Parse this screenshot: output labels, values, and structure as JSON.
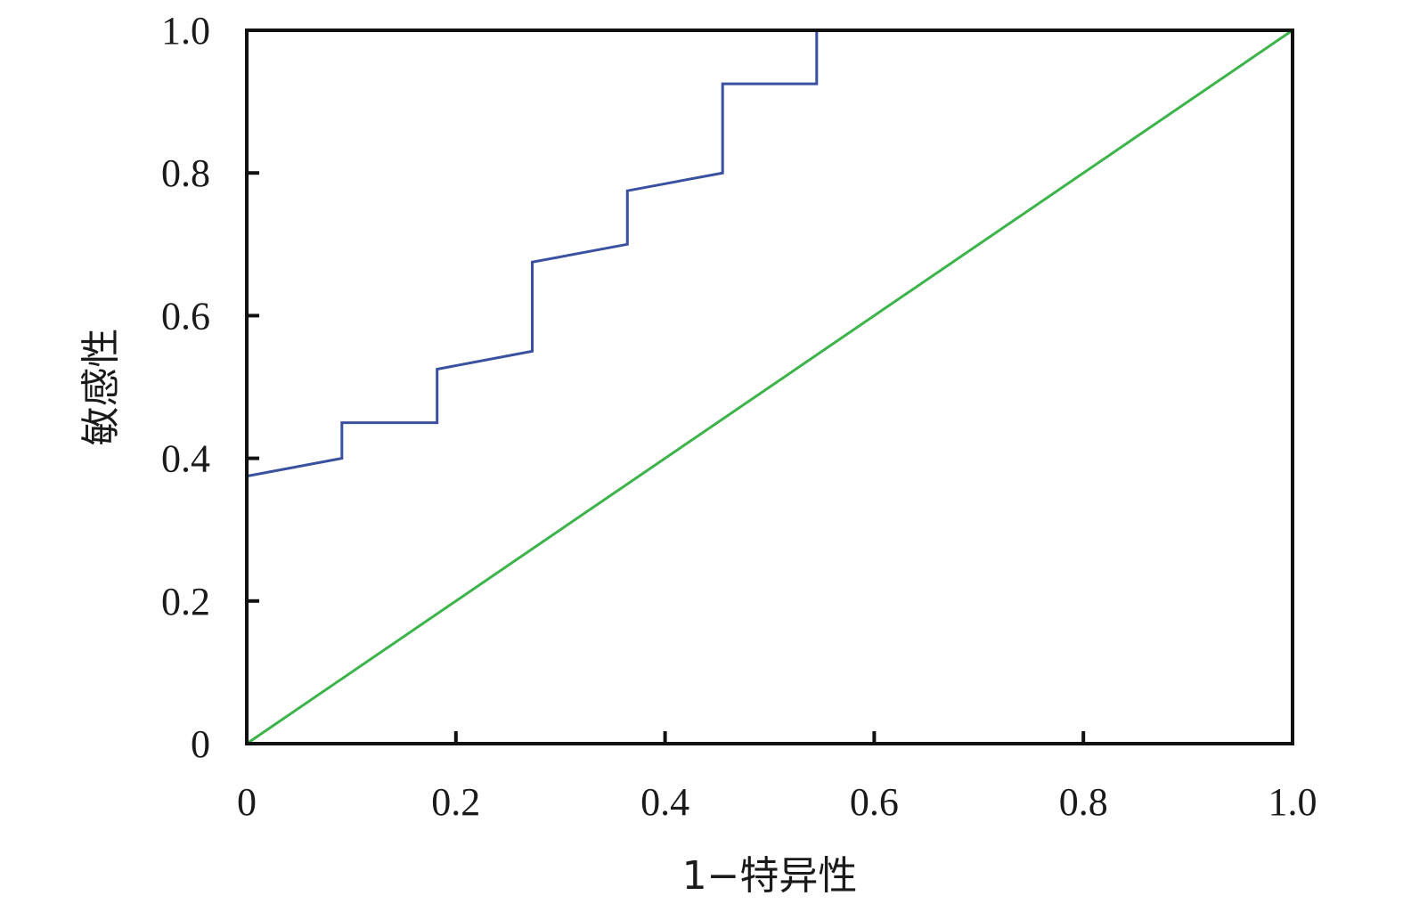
{
  "chart_data": {
    "type": "line",
    "title": "",
    "xlabel": "1−特异性",
    "ylabel": "敏感性",
    "xlim": [
      0,
      1.0
    ],
    "ylim": [
      0,
      1.0
    ],
    "x_ticks": [
      {
        "value": 0,
        "label": "0"
      },
      {
        "value": 0.2,
        "label": "0.2"
      },
      {
        "value": 0.4,
        "label": "0.4"
      },
      {
        "value": 0.6,
        "label": "0.6"
      },
      {
        "value": 0.8,
        "label": "0.8"
      },
      {
        "value": 1.0,
        "label": "1.0"
      }
    ],
    "y_ticks": [
      {
        "value": 0,
        "label": "0"
      },
      {
        "value": 0.2,
        "label": "0.2"
      },
      {
        "value": 0.4,
        "label": "0.4"
      },
      {
        "value": 0.6,
        "label": "0.6"
      },
      {
        "value": 0.8,
        "label": "0.8"
      },
      {
        "value": 1.0,
        "label": "1.0"
      }
    ],
    "grid": false,
    "legend": "none",
    "series": [
      {
        "color": "#3a50a0",
        "points": [
          [
            0,
            0
          ],
          [
            0,
            0.375
          ],
          [
            0.091,
            0.4
          ],
          [
            0.091,
            0.45
          ],
          [
            0.182,
            0.45
          ],
          [
            0.182,
            0.525
          ],
          [
            0.273,
            0.55
          ],
          [
            0.273,
            0.675
          ],
          [
            0.364,
            0.7
          ],
          [
            0.364,
            0.775
          ],
          [
            0.455,
            0.8
          ],
          [
            0.455,
            0.925
          ],
          [
            0.545,
            0.925
          ],
          [
            0.545,
            1.0
          ],
          [
            1.0,
            1.0
          ]
        ]
      },
      {
        "color": "#3cb44b",
        "points": [
          [
            0,
            0
          ],
          [
            1.0,
            1.0
          ]
        ]
      }
    ]
  }
}
